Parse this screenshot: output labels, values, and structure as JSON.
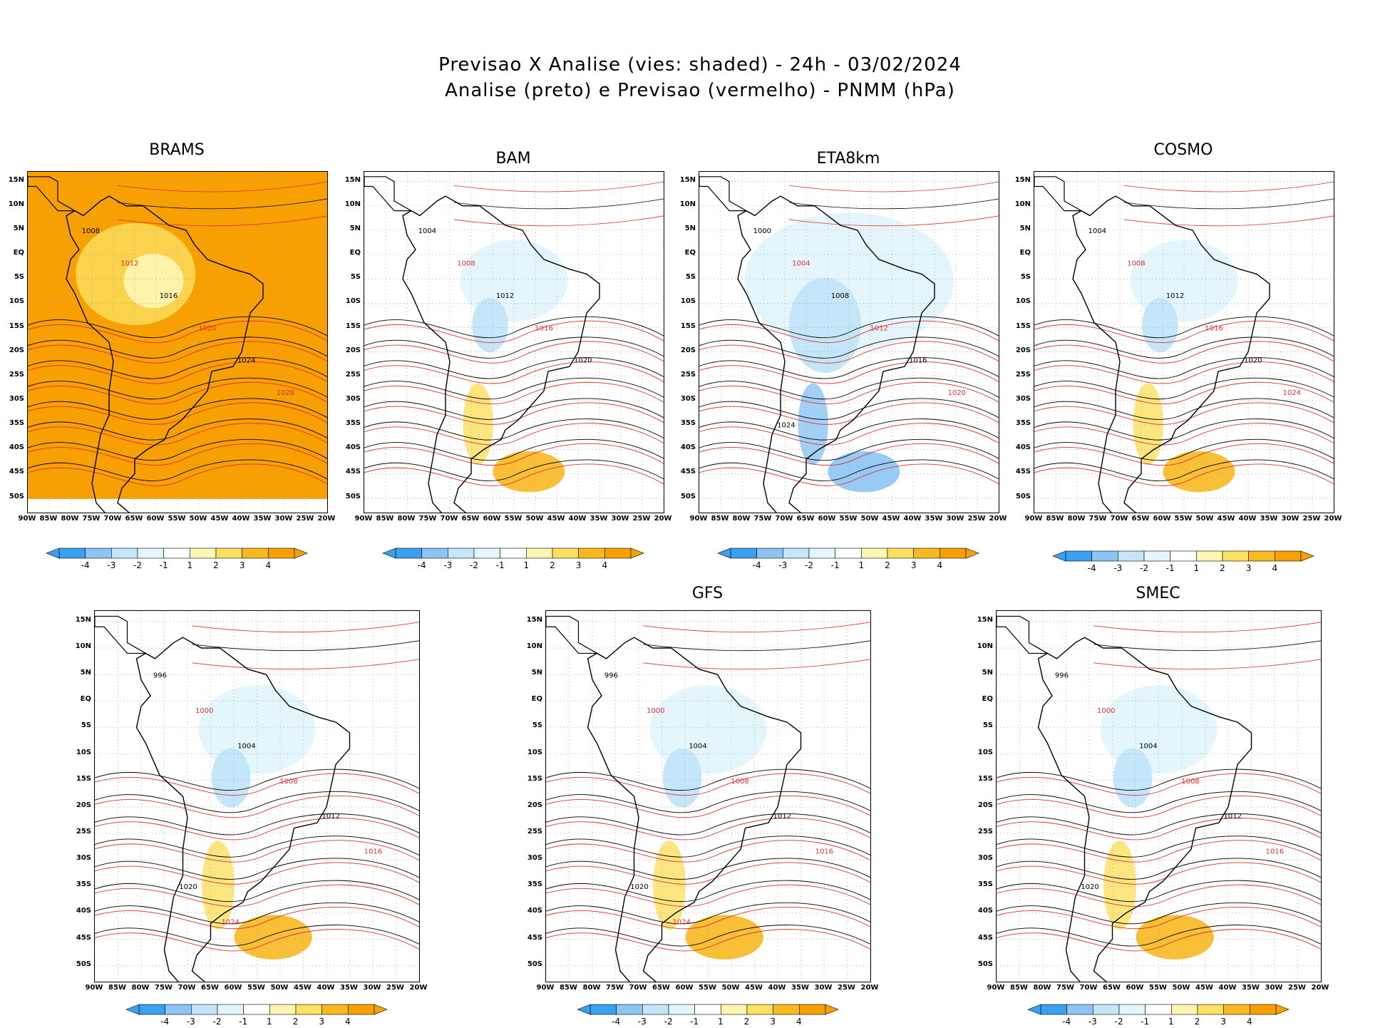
{
  "title_line1": "Previsao X Analise (vies: shaded) - 24h - 03/02/2024",
  "title_line2": "Analise (preto) e Previsao (vermelho) - PNMM (hPa)",
  "lat_labels": [
    "15N",
    "10N",
    "5N",
    "EQ",
    "5S",
    "10S",
    "15S",
    "20S",
    "25S",
    "30S",
    "35S",
    "40S",
    "45S",
    "50S"
  ],
  "lon_labels": [
    "90W",
    "85W",
    "80W",
    "75W",
    "70W",
    "65W",
    "60W",
    "55W",
    "50W",
    "45W",
    "40W",
    "35W",
    "30W",
    "25W",
    "20W"
  ],
  "colorbar_labels": [
    "-4",
    "-3",
    "-2",
    "-1",
    "1",
    "2",
    "3",
    "4"
  ],
  "colors": {
    "bias": [
      "#3aa0f0",
      "#8cc4f4",
      "#c4e6f8",
      "#e4f6fc",
      "#ffffff",
      "#fff6b4",
      "#fce060",
      "#f8b820",
      "#f8a000"
    ],
    "analysis": "#000000",
    "forecast": "#e03030",
    "land": "#000000"
  },
  "panels": [
    {
      "name": "BRAMS",
      "isobar_labels": [
        "1008",
        "1012",
        "1016",
        "1020",
        "1024",
        "1028"
      ],
      "bias": "warm"
    },
    {
      "name": "BAM",
      "isobar_labels": [
        "1004",
        "1008",
        "1012",
        "1016",
        "1020"
      ],
      "bias": "mixed"
    },
    {
      "name": "ETA8km",
      "isobar_labels": [
        "1000",
        "1004",
        "1008",
        "1012",
        "1016",
        "1020",
        "1024"
      ],
      "bias": "cool"
    },
    {
      "name": "COSMO",
      "isobar_labels": [
        "1004",
        "1008",
        "1012",
        "1016",
        "1020",
        "1024"
      ],
      "bias": "mixed"
    },
    {
      "name": "",
      "isobar_labels": [
        "996",
        "1000",
        "1004",
        "1008",
        "1012",
        "1016",
        "1020",
        "1024"
      ],
      "bias": "mixed"
    },
    {
      "name": "GFS",
      "isobar_labels": [
        "996",
        "1000",
        "1004",
        "1008",
        "1012",
        "1016",
        "1020",
        "1024"
      ],
      "bias": "mixed"
    },
    {
      "name": "SMEC",
      "isobar_labels": [
        "996",
        "1000",
        "1004",
        "1008",
        "1012",
        "1016",
        "1020"
      ],
      "bias": "mixed"
    }
  ]
}
